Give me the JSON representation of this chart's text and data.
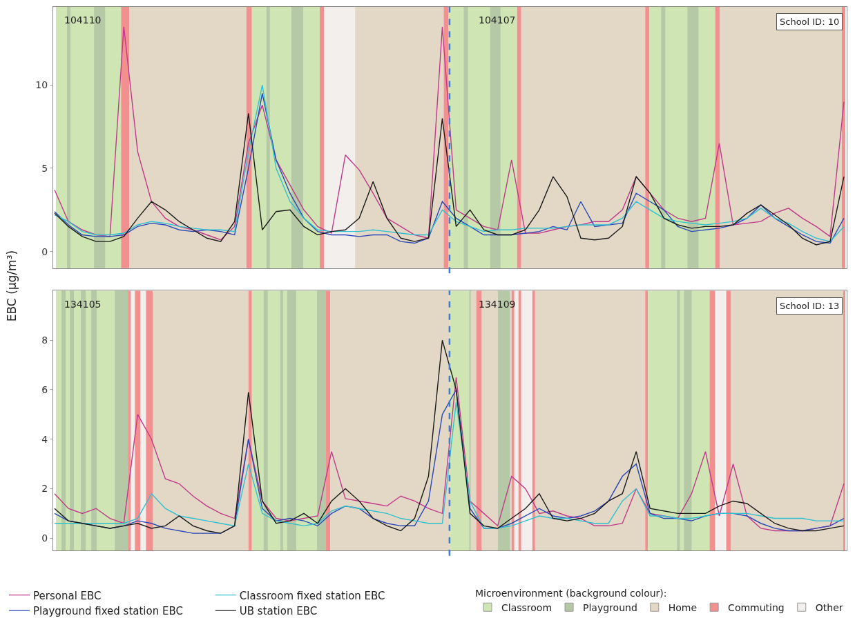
{
  "chart_data": [
    {
      "type": "line",
      "ylabel": "EBC (μg/m³)",
      "legend_title": "Microenvironment (background colour):",
      "legend": "bottom",
      "tick_labels": "y",
      "categories": [
        null,
        null,
        null,
        null,
        null,
        null,
        null,
        null,
        null,
        null,
        null,
        null,
        null,
        null,
        null,
        null,
        null,
        null,
        null,
        null,
        null,
        null,
        null,
        null,
        null,
        null,
        null,
        null,
        null,
        null,
        null,
        null,
        null,
        null,
        null,
        null,
        null,
        null,
        null,
        null,
        null,
        null,
        null,
        null,
        null,
        null,
        null,
        null,
        null,
        null,
        null,
        null,
        null,
        null,
        null,
        null,
        null,
        null
      ],
      "ylim": [
        -1,
        14.7
      ],
      "yticks": [
        0,
        5,
        10
      ],
      "series": [
        {
          "name": "Personal EBC",
          "color": "#c0388a",
          "values": [
            3.7,
            1.8,
            1.3,
            1.0,
            0.9,
            13.5,
            6.0,
            3.0,
            2.0,
            1.5,
            1.3,
            1.0,
            0.7,
            1.5,
            6.5,
            8.8,
            5.5,
            4.0,
            2.5,
            1.5,
            1.1,
            5.8,
            4.9,
            3.5,
            2.0,
            1.5,
            1.0,
            0.8,
            13.5,
            2.5,
            2.0,
            1.5,
            1.3,
            5.5,
            1.1,
            1.1,
            1.3,
            1.5,
            1.6,
            1.8,
            1.8,
            2.5,
            4.5,
            3.5,
            2.5,
            2.0,
            1.8,
            2.0,
            6.5,
            1.6,
            1.7,
            1.8,
            2.3,
            2.6,
            2.0,
            1.5,
            0.9,
            9.0
          ]
        },
        {
          "name": "Playground fixed station EBC",
          "color": "#2a48b8",
          "values": [
            2.4,
            1.6,
            1.0,
            0.9,
            0.9,
            1.0,
            1.5,
            1.7,
            1.6,
            1.3,
            1.2,
            1.3,
            1.2,
            1.0,
            5.0,
            9.5,
            5.5,
            3.5,
            2.0,
            1.2,
            1.0,
            1.0,
            0.9,
            1.0,
            1.0,
            0.6,
            0.5,
            0.8,
            3.0,
            2.0,
            1.5,
            1.0,
            1.0,
            1.0,
            1.1,
            1.2,
            1.5,
            1.3,
            3.0,
            1.5,
            1.6,
            1.7,
            3.5,
            3.0,
            2.5,
            1.5,
            1.2,
            1.3,
            1.4,
            1.6,
            2.0,
            2.8,
            2.0,
            1.5,
            1.0,
            0.6,
            0.5,
            2.0
          ]
        },
        {
          "name": "Classroom fixed station EBC",
          "color": "#30c0d0",
          "values": [
            2.2,
            1.8,
            1.2,
            1.0,
            1.0,
            1.1,
            1.6,
            1.8,
            1.7,
            1.5,
            1.4,
            1.3,
            1.3,
            1.2,
            6.0,
            10.0,
            5.0,
            3.0,
            2.0,
            1.3,
            1.2,
            1.2,
            1.2,
            1.3,
            1.2,
            1.1,
            1.0,
            1.0,
            2.5,
            1.8,
            1.5,
            1.2,
            1.3,
            1.3,
            1.4,
            1.4,
            1.4,
            1.5,
            1.6,
            1.6,
            1.6,
            2.0,
            3.0,
            2.5,
            2.0,
            1.8,
            1.7,
            1.6,
            1.7,
            1.8,
            2.0,
            2.6,
            2.0,
            1.7,
            1.2,
            0.8,
            0.6,
            1.5
          ]
        },
        {
          "name": "UB station EBC",
          "color": "#1a1a1a",
          "values": [
            2.3,
            1.5,
            0.9,
            0.6,
            0.6,
            0.9,
            2.0,
            3.0,
            2.5,
            1.8,
            1.3,
            0.8,
            0.6,
            1.8,
            8.3,
            1.3,
            2.4,
            2.5,
            1.5,
            1.0,
            1.2,
            1.3,
            2.0,
            4.2,
            2.0,
            0.8,
            0.6,
            0.8,
            8.0,
            1.5,
            2.5,
            1.3,
            1.0,
            1.0,
            1.3,
            2.5,
            4.5,
            3.3,
            0.8,
            0.7,
            0.8,
            1.5,
            4.5,
            3.5,
            2.0,
            1.6,
            1.4,
            1.5,
            1.5,
            1.6,
            2.3,
            2.8,
            2.2,
            1.6,
            0.8,
            0.4,
            0.6,
            4.5
          ]
        }
      ],
      "annotations": [
        "104110",
        "104107",
        "School ID: 10"
      ]
    },
    {
      "type": "line",
      "legend": "bottom",
      "tick_labels": "y",
      "categories": [
        null,
        null,
        null,
        null,
        null,
        null,
        null,
        null,
        null,
        null,
        null,
        null,
        null,
        null,
        null,
        null,
        null,
        null,
        null,
        null,
        null,
        null,
        null,
        null,
        null,
        null,
        null,
        null,
        null,
        null,
        null,
        null,
        null,
        null,
        null,
        null,
        null,
        null,
        null,
        null,
        null,
        null,
        null,
        null,
        null,
        null,
        null,
        null,
        null,
        null,
        null,
        null,
        null,
        null,
        null,
        null,
        null,
        null
      ],
      "ylim": [
        -0.5,
        10
      ],
      "yticks": [
        0,
        2,
        4,
        6,
        8
      ],
      "series": [
        {
          "name": "Personal EBC",
          "color": "#c0388a",
          "values": [
            1.8,
            1.2,
            1.0,
            1.2,
            0.8,
            0.6,
            5.0,
            4.0,
            2.4,
            2.2,
            1.7,
            1.3,
            1.0,
            0.8,
            4.0,
            1.5,
            0.8,
            0.7,
            0.8,
            0.9,
            3.5,
            1.6,
            1.5,
            1.4,
            1.3,
            1.7,
            1.5,
            1.2,
            1.0,
            6.5,
            1.5,
            1.0,
            0.5,
            2.5,
            2.0,
            1.0,
            1.1,
            0.9,
            0.8,
            0.5,
            0.5,
            0.6,
            2.0,
            1.0,
            0.9,
            0.8,
            1.8,
            3.5,
            0.9,
            3.0,
            0.9,
            0.4,
            0.3,
            0.3,
            0.3,
            0.4,
            0.5,
            2.2
          ]
        },
        {
          "name": "Playground fixed station EBC",
          "color": "#2a48b8",
          "values": [
            1.0,
            0.7,
            0.6,
            0.5,
            0.4,
            0.5,
            0.7,
            0.6,
            0.4,
            0.3,
            0.2,
            0.2,
            0.2,
            0.5,
            4.0,
            1.2,
            0.7,
            0.8,
            0.7,
            0.5,
            1.0,
            1.3,
            1.2,
            0.8,
            0.6,
            0.5,
            0.5,
            1.5,
            5.0,
            6.0,
            1.2,
            0.4,
            0.4,
            0.6,
            0.9,
            1.2,
            0.9,
            0.8,
            0.9,
            1.1,
            1.5,
            2.5,
            3.0,
            1.0,
            0.8,
            0.8,
            0.7,
            0.9,
            1.0,
            1.0,
            0.9,
            0.6,
            0.4,
            0.3,
            0.3,
            0.4,
            0.5,
            0.8
          ]
        },
        {
          "name": "Classroom fixed station EBC",
          "color": "#30c0d0",
          "values": [
            0.6,
            0.6,
            0.6,
            0.6,
            0.6,
            0.6,
            0.8,
            1.8,
            1.2,
            0.9,
            0.8,
            0.7,
            0.6,
            0.5,
            3.0,
            1.0,
            0.7,
            0.6,
            0.5,
            0.6,
            1.1,
            1.3,
            1.2,
            1.1,
            1.0,
            0.8,
            0.7,
            0.6,
            0.6,
            5.5,
            1.5,
            0.4,
            0.4,
            0.5,
            0.7,
            0.9,
            0.8,
            0.8,
            0.7,
            0.6,
            0.6,
            1.5,
            2.0,
            0.9,
            0.9,
            0.8,
            0.8,
            0.9,
            1.0,
            1.0,
            1.0,
            0.9,
            0.8,
            0.8,
            0.8,
            0.7,
            0.7,
            0.7
          ]
        },
        {
          "name": "UB station EBC",
          "color": "#1a1a1a",
          "values": [
            1.2,
            0.7,
            0.6,
            0.5,
            0.4,
            0.5,
            0.6,
            0.4,
            0.5,
            0.9,
            0.5,
            0.3,
            0.2,
            0.5,
            5.9,
            1.5,
            0.6,
            0.7,
            1.0,
            0.6,
            1.5,
            2.0,
            1.5,
            0.8,
            0.5,
            0.3,
            0.8,
            2.5,
            8.0,
            6.0,
            1.0,
            0.5,
            0.4,
            0.8,
            1.2,
            1.8,
            0.8,
            0.7,
            0.8,
            1.0,
            1.5,
            1.8,
            3.5,
            1.2,
            1.1,
            1.0,
            1.0,
            1.0,
            1.3,
            1.5,
            1.4,
            1.0,
            0.6,
            0.4,
            0.3,
            0.3,
            0.4,
            0.5
          ]
        },
        {
          "name": "Classroom",
          "color": "#cfe5b4",
          "type": "bar",
          "values": [
            null,
            null,
            null,
            null,
            null,
            null,
            null,
            null,
            null,
            null,
            null,
            null,
            null,
            null,
            null,
            null,
            null,
            null,
            null,
            null,
            null,
            null,
            null,
            null,
            null,
            null,
            null,
            null,
            null,
            null,
            null,
            null,
            null,
            null,
            null,
            null,
            null,
            null,
            null,
            null,
            null,
            null,
            null,
            null,
            null,
            null,
            null,
            null,
            null,
            null,
            null,
            null,
            null,
            null,
            null,
            null,
            null,
            null
          ]
        },
        {
          "name": "Playground",
          "color": "#b6c9a6",
          "type": "bar",
          "values": [
            null,
            null,
            null,
            null,
            null,
            null,
            null,
            null,
            null,
            null,
            null,
            null,
            null,
            null,
            null,
            null,
            null,
            null,
            null,
            null,
            null,
            null,
            null,
            null,
            null,
            null,
            null,
            null,
            null,
            null,
            null,
            null,
            null,
            null,
            null,
            null,
            null,
            null,
            null,
            null,
            null,
            null,
            null,
            null,
            null,
            null,
            null,
            null,
            null,
            null,
            null,
            null,
            null,
            null,
            null,
            null,
            null,
            null
          ]
        },
        {
          "name": "Home",
          "color": "#e3d8c6",
          "type": "bar",
          "values": [
            null,
            null,
            null,
            null,
            null,
            null,
            null,
            null,
            null,
            null,
            null,
            null,
            null,
            null,
            null,
            null,
            null,
            null,
            null,
            null,
            null,
            null,
            null,
            null,
            null,
            null,
            null,
            null,
            null,
            null,
            null,
            null,
            null,
            null,
            null,
            null,
            null,
            null,
            null,
            null,
            null,
            null,
            null,
            null,
            null,
            null,
            null,
            null,
            null,
            null,
            null,
            null,
            null,
            null,
            null,
            null,
            null,
            null
          ]
        },
        {
          "name": "Commuting",
          "color": "#f28f8f",
          "type": "bar",
          "values": [
            null,
            null,
            null,
            null,
            null,
            null,
            null,
            null,
            null,
            null,
            null,
            null,
            null,
            null,
            null,
            null,
            null,
            null,
            null,
            null,
            null,
            null,
            null,
            null,
            null,
            null,
            null,
            null,
            null,
            null,
            null,
            null,
            null,
            null,
            null,
            null,
            null,
            null,
            null,
            null,
            null,
            null,
            null,
            null,
            null,
            null,
            null,
            null,
            null,
            null,
            null,
            null,
            null,
            null,
            null,
            null,
            null,
            null
          ]
        },
        {
          "name": "Other",
          "color": "#f2efec",
          "type": "bar",
          "values": [
            null,
            null,
            null,
            null,
            null,
            null,
            null,
            null,
            null,
            null,
            null,
            null,
            null,
            null,
            null,
            null,
            null,
            null,
            null,
            null,
            null,
            null,
            null,
            null,
            null,
            null,
            null,
            null,
            null,
            null,
            null,
            null,
            null,
            null,
            null,
            null,
            null,
            null,
            null,
            null,
            null,
            null,
            null,
            null,
            null,
            null,
            null,
            null,
            null,
            null,
            null,
            null,
            null,
            null,
            null,
            null,
            null,
            null
          ]
        }
      ],
      "annotations": [
        "134105",
        "134109",
        "School ID: 13"
      ]
    }
  ]
}
